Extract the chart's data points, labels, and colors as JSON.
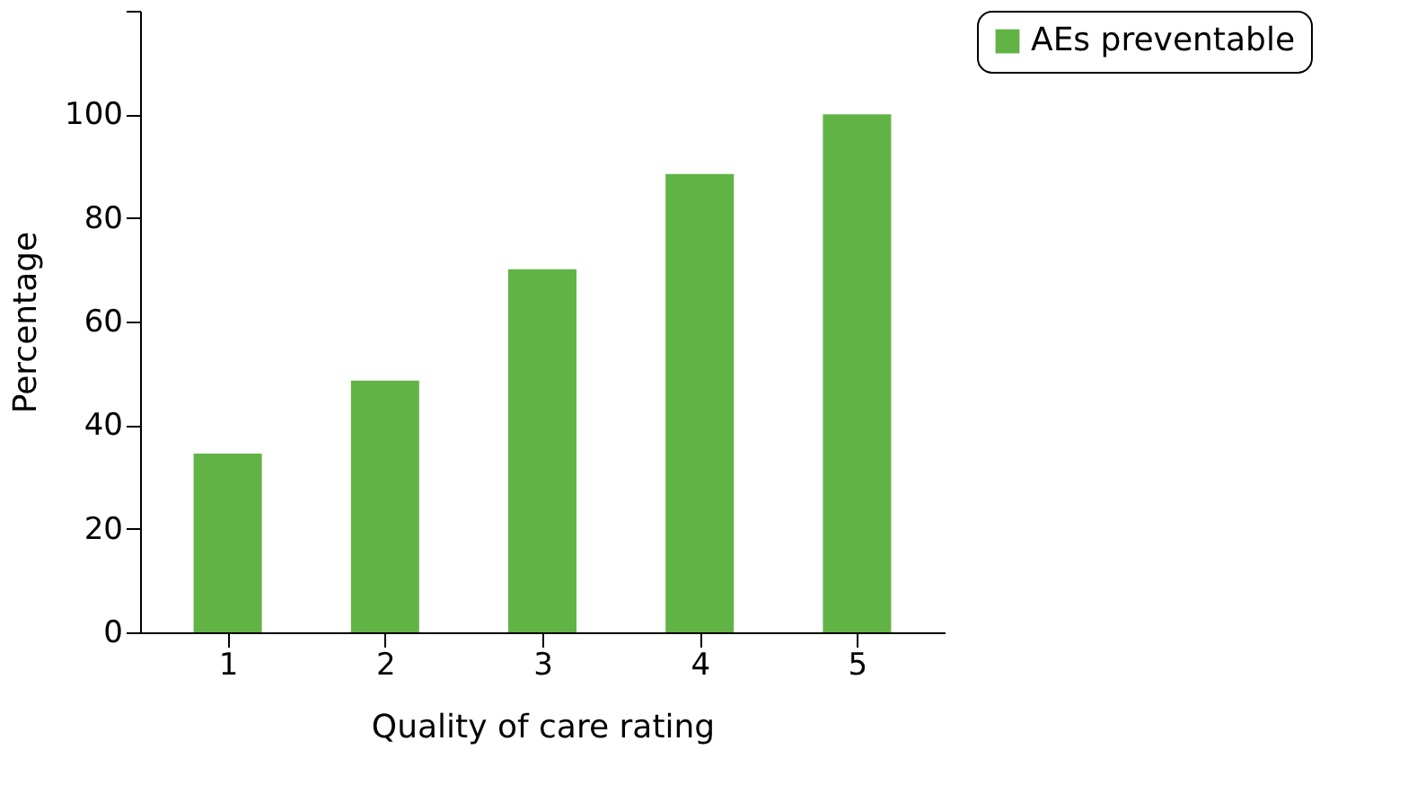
{
  "chart_data": {
    "type": "bar",
    "xlabel": "Quality of care rating",
    "ylabel": "Percentage",
    "categories": [
      "1",
      "2",
      "3",
      "4",
      "5"
    ],
    "series": [
      {
        "name": "AEs preventable",
        "color": "#62b346",
        "values": [
          34.5,
          48.6,
          70.1,
          88.5,
          100
        ]
      }
    ],
    "ylim": [
      0,
      120
    ],
    "yticks": [
      0,
      20,
      40,
      60,
      80,
      100,
      {
        "value": 120,
        "label": null
      }
    ],
    "grid": false,
    "legend": "right"
  }
}
